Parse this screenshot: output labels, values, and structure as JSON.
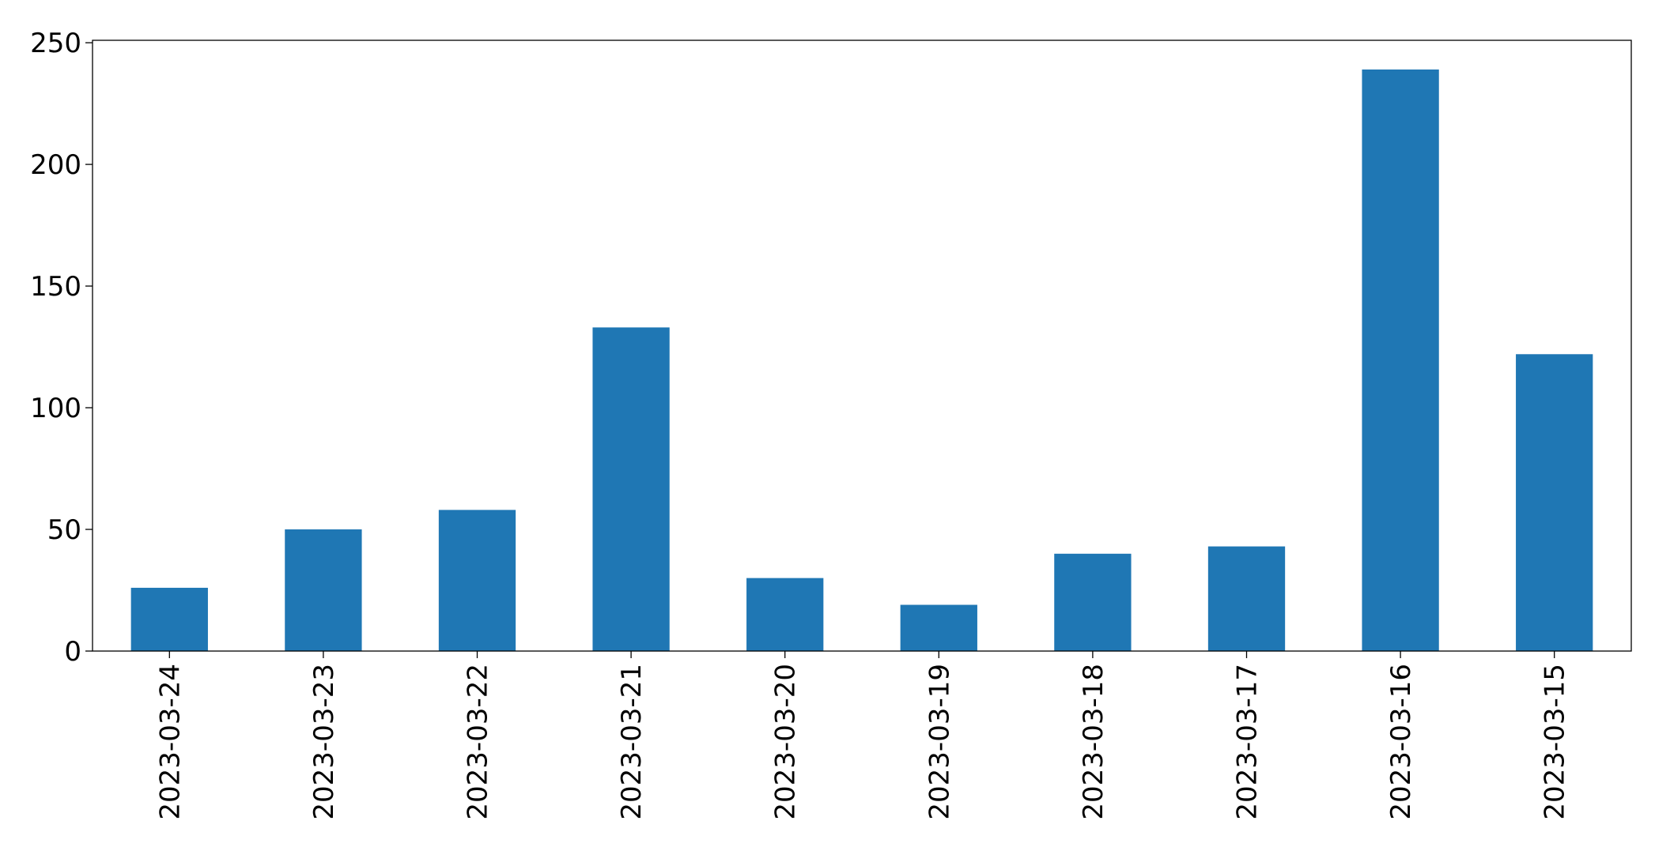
{
  "chart_data": {
    "type": "bar",
    "categories": [
      "2023-03-24",
      "2023-03-23",
      "2023-03-22",
      "2023-03-21",
      "2023-03-20",
      "2023-03-19",
      "2023-03-18",
      "2023-03-17",
      "2023-03-16",
      "2023-03-15"
    ],
    "values": [
      26,
      50,
      58,
      133,
      30,
      19,
      40,
      43,
      239,
      122
    ],
    "color": "#1f77b4",
    "ylim": [
      0,
      251
    ],
    "yticks": [
      0,
      50,
      100,
      150,
      200,
      250
    ],
    "grid": false
  }
}
